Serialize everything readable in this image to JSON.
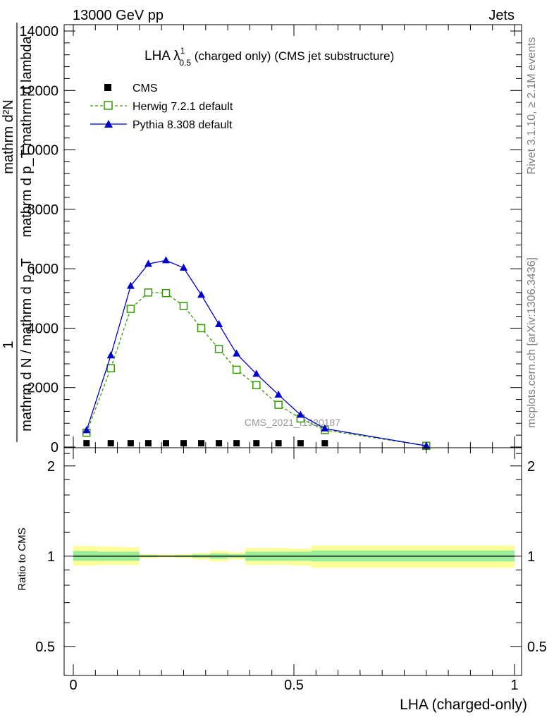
{
  "header": {
    "energy": "13000 GeV pp",
    "category": "Jets"
  },
  "side_labels": {
    "rivet": "Rivet 3.1.10, ≥ 2.1M events",
    "mcplots": "mcplots.cern.ch [arXiv:1306.3436]"
  },
  "watermark": "CMS_2021_I1920187",
  "colors": {
    "cms": "#000000",
    "herwig": "#339900",
    "pythia": "#0000cc",
    "band_outer": "#ffff99",
    "band_inner": "#99ee99"
  },
  "chart_data": [
    {
      "type": "line",
      "title": "LHA λ",
      "title_sup": "1",
      "title_sub": "0.5",
      "title_rest": " (charged only) (CMS jet substructure)",
      "ylabel_numerator": "mathrm d²N",
      "ylabel_denominator": "mathrm d p_T mathrm d lambda",
      "ylabel_prefix_numerator": "1",
      "ylabel_prefix_denominator": "mathrm d N / mathrm d p_T",
      "xlim": [
        0,
        1
      ],
      "ylim": [
        0,
        14000
      ],
      "y_ticks": [
        0,
        2000,
        4000,
        6000,
        8000,
        10000,
        12000,
        14000
      ],
      "y_tick_labels": [
        "0",
        "2000",
        "4000",
        "6000",
        "8000",
        "10000",
        "12000",
        "14000"
      ],
      "legend_position": "top-left",
      "series": [
        {
          "name": "CMS",
          "marker": "square-filled",
          "x": [
            0.03,
            0.085,
            0.13,
            0.17,
            0.21,
            0.25,
            0.29,
            0.33,
            0.37,
            0.415,
            0.465,
            0.515,
            0.57
          ],
          "y": [
            20,
            20,
            20,
            20,
            20,
            20,
            20,
            20,
            20,
            20,
            20,
            20,
            20
          ]
        },
        {
          "name": "Herwig 7.2.1 default",
          "marker": "square-open",
          "dashed": true,
          "x": [
            0.03,
            0.085,
            0.13,
            0.17,
            0.21,
            0.25,
            0.29,
            0.33,
            0.37,
            0.415,
            0.465,
            0.515,
            0.57,
            0.8
          ],
          "y": [
            480,
            2650,
            4650,
            5200,
            5180,
            4750,
            4000,
            3300,
            2600,
            2080,
            1420,
            960,
            570,
            40
          ]
        },
        {
          "name": "Pythia 8.308 default",
          "marker": "triangle-filled",
          "dashed": false,
          "x": [
            0.03,
            0.085,
            0.13,
            0.17,
            0.21,
            0.25,
            0.29,
            0.33,
            0.37,
            0.415,
            0.465,
            0.515,
            0.57,
            0.8
          ],
          "y": [
            560,
            3080,
            5420,
            6160,
            6280,
            6030,
            5120,
            4130,
            3140,
            2460,
            1760,
            1080,
            620,
            40
          ]
        }
      ]
    },
    {
      "type": "area",
      "ylabel": "Ratio to CMS",
      "xlabel": "LHA (charged-only)",
      "xlim": [
        0,
        1
      ],
      "ylim": [
        0.4,
        2.3
      ],
      "log_y": true,
      "x_ticks": [
        0,
        0.5,
        1
      ],
      "x_tick_labels": [
        "0",
        "0.5",
        "1"
      ],
      "y_ticks": [
        0.5,
        1,
        2
      ],
      "y_tick_labels": [
        "0.5",
        "1",
        "2"
      ],
      "reference": 1,
      "bins": [
        {
          "x0": 0.0,
          "x1": 0.055,
          "outer": [
            0.93,
            1.08
          ],
          "inner": [
            0.965,
            1.04
          ]
        },
        {
          "x0": 0.055,
          "x1": 0.11,
          "outer": [
            0.935,
            1.075
          ],
          "inner": [
            0.965,
            1.035
          ]
        },
        {
          "x0": 0.11,
          "x1": 0.15,
          "outer": [
            0.935,
            1.07
          ],
          "inner": [
            0.965,
            1.035
          ]
        },
        {
          "x0": 0.15,
          "x1": 0.19,
          "outer": [
            0.985,
            1.015
          ],
          "inner": [
            0.993,
            1.008
          ]
        },
        {
          "x0": 0.19,
          "x1": 0.23,
          "outer": [
            0.99,
            1.012
          ],
          "inner": [
            0.995,
            1.005
          ]
        },
        {
          "x0": 0.23,
          "x1": 0.27,
          "outer": [
            0.985,
            1.015
          ],
          "inner": [
            0.993,
            1.007
          ]
        },
        {
          "x0": 0.27,
          "x1": 0.31,
          "outer": [
            0.975,
            1.025
          ],
          "inner": [
            0.988,
            1.013
          ]
        },
        {
          "x0": 0.31,
          "x1": 0.35,
          "outer": [
            0.96,
            1.04
          ],
          "inner": [
            0.98,
            1.02
          ]
        },
        {
          "x0": 0.35,
          "x1": 0.39,
          "outer": [
            0.975,
            1.03
          ],
          "inner": [
            0.988,
            1.015
          ]
        },
        {
          "x0": 0.39,
          "x1": 0.44,
          "outer": [
            0.935,
            1.065
          ],
          "inner": [
            0.965,
            1.035
          ]
        },
        {
          "x0": 0.44,
          "x1": 0.49,
          "outer": [
            0.935,
            1.065
          ],
          "inner": [
            0.965,
            1.035
          ]
        },
        {
          "x0": 0.49,
          "x1": 0.54,
          "outer": [
            0.93,
            1.06
          ],
          "inner": [
            0.965,
            1.035
          ]
        },
        {
          "x0": 0.54,
          "x1": 1.0,
          "outer": [
            0.915,
            1.085
          ],
          "inner": [
            0.96,
            1.045
          ]
        }
      ]
    }
  ]
}
